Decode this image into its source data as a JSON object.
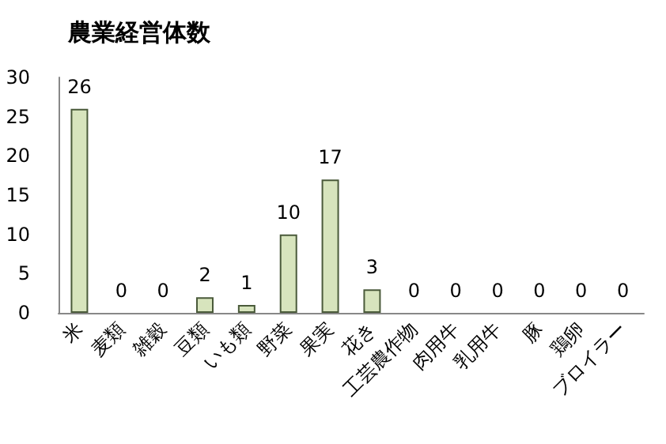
{
  "chart_data": {
    "type": "bar",
    "title": "農業経営体数",
    "categories": [
      "米",
      "麦類",
      "雑穀",
      "豆類",
      "いも類",
      "野菜",
      "果実",
      "花き",
      "工芸農作物",
      "肉用牛",
      "乳用牛",
      "豚",
      "鶏卵",
      "ブロイラー"
    ],
    "values": [
      26,
      0,
      0,
      2,
      1,
      10,
      17,
      3,
      0,
      0,
      0,
      0,
      0,
      0
    ],
    "color": "#d7e4bd",
    "ylim": [
      0,
      30
    ],
    "yticks": [
      0,
      5,
      10,
      15,
      20,
      25,
      30
    ],
    "grid": false,
    "data_labels": true
  }
}
